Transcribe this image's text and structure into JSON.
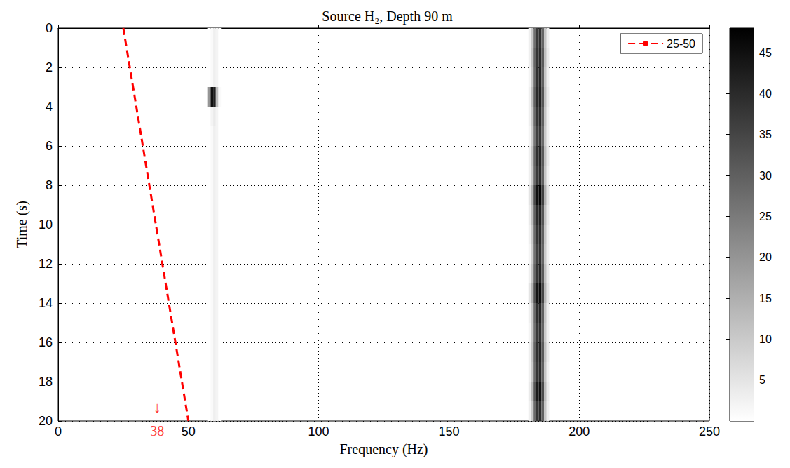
{
  "chart_data": {
    "type": "heatmap",
    "title": "Source H₂, Depth 90 m",
    "x_label": "Frequency (Hz)",
    "y_label": "Time (s)",
    "xlim": [
      0,
      250
    ],
    "xticks": [
      0,
      50,
      100,
      150,
      200,
      250
    ],
    "ylim": [
      0,
      20
    ],
    "yticks": [
      0,
      2,
      4,
      6,
      8,
      10,
      12,
      14,
      16,
      18,
      20
    ],
    "grid": true,
    "legend": "upper right",
    "cells": {
      "x": [
        58,
        59,
        60,
        61,
        62,
        181,
        182,
        183,
        184,
        185,
        186,
        187,
        188
      ],
      "y": [
        0.5,
        1.5,
        2.5,
        3.5,
        4.5,
        5.5,
        6.5,
        7.5,
        8.5,
        9.5,
        10.5,
        11.5,
        12.5,
        13.5,
        14.5,
        15.5,
        16.5,
        17.5,
        18.5,
        19.5
      ],
      "values": [
        [
          0,
          1,
          3,
          2,
          0,
          3,
          10,
          27,
          37,
          39,
          29,
          11,
          3
        ],
        [
          0,
          1,
          3,
          2,
          0,
          3,
          11,
          29,
          38,
          40,
          31,
          12,
          4
        ],
        [
          0,
          1,
          3,
          2,
          0,
          2,
          10,
          28,
          39,
          41,
          30,
          11,
          3
        ],
        [
          20,
          45,
          42,
          12,
          1,
          3,
          12,
          30,
          40,
          42,
          32,
          12,
          4
        ],
        [
          0,
          2,
          4,
          2,
          0,
          3,
          10,
          28,
          38,
          40,
          30,
          11,
          3
        ],
        [
          0,
          1,
          3,
          2,
          0,
          2,
          9,
          26,
          36,
          38,
          28,
          10,
          3
        ],
        [
          0,
          1,
          3,
          2,
          0,
          3,
          11,
          29,
          39,
          41,
          31,
          12,
          4
        ],
        [
          0,
          1,
          3,
          2,
          0,
          3,
          10,
          28,
          37,
          40,
          30,
          11,
          3
        ],
        [
          0,
          1,
          3,
          2,
          0,
          5,
          14,
          34,
          45,
          47,
          36,
          15,
          5
        ],
        [
          0,
          1,
          3,
          2,
          0,
          4,
          12,
          30,
          40,
          42,
          32,
          12,
          4
        ],
        [
          0,
          1,
          3,
          2,
          0,
          3,
          10,
          28,
          38,
          40,
          30,
          11,
          3
        ],
        [
          0,
          1,
          3,
          2,
          0,
          2,
          9,
          27,
          36,
          39,
          29,
          10,
          3
        ],
        [
          0,
          1,
          3,
          2,
          0,
          3,
          11,
          29,
          38,
          41,
          31,
          12,
          4
        ],
        [
          0,
          1,
          3,
          2,
          0,
          5,
          14,
          33,
          44,
          46,
          35,
          14,
          5
        ],
        [
          0,
          1,
          3,
          2,
          0,
          3,
          10,
          28,
          39,
          41,
          30,
          11,
          3
        ],
        [
          0,
          1,
          3,
          2,
          0,
          2,
          10,
          27,
          37,
          39,
          29,
          10,
          3
        ],
        [
          0,
          1,
          3,
          2,
          0,
          3,
          11,
          29,
          39,
          41,
          31,
          12,
          4
        ],
        [
          0,
          1,
          3,
          2,
          0,
          3,
          10,
          28,
          38,
          40,
          30,
          11,
          3
        ],
        [
          0,
          1,
          3,
          2,
          0,
          4,
          13,
          32,
          43,
          45,
          34,
          13,
          4
        ],
        [
          0,
          1,
          3,
          2,
          0,
          3,
          10,
          28,
          38,
          40,
          30,
          11,
          3
        ]
      ]
    },
    "colorbar": {
      "lim": [
        0,
        48
      ],
      "ticks": [
        5,
        10,
        15,
        20,
        25,
        30,
        35,
        40,
        45
      ]
    },
    "series": [
      {
        "name": "25-50",
        "type": "line",
        "color": "#ff0000",
        "line_style": "dashed",
        "marker": "none",
        "x": [
          25,
          50
        ],
        "values": [
          0,
          20
        ]
      }
    ],
    "annotations": [
      {
        "text": "↓",
        "x": 38,
        "y": 19.3,
        "color": "#ff0000"
      },
      {
        "text": "38",
        "x": 38,
        "y": 20,
        "color": "#ff0000"
      }
    ]
  }
}
